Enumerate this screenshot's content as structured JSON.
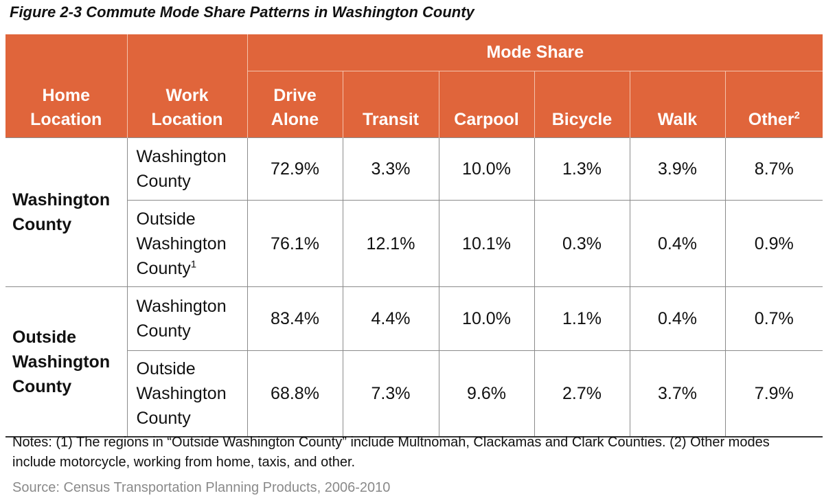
{
  "figure": {
    "title": "Figure 2-3  Commute Mode Share Patterns in Washington County"
  },
  "table": {
    "header": {
      "home_location": "Home Location",
      "work_location": "Work Location",
      "group": "Mode Share",
      "columns": [
        "Drive Alone",
        "Transit",
        "Carpool",
        "Bicycle",
        "Walk",
        "Other"
      ],
      "other_footnote": "2"
    },
    "groups": [
      {
        "home": "Washington County",
        "rows": [
          {
            "work": "Washington County",
            "footnote": "",
            "values": [
              "72.9%",
              "3.3%",
              "10.0%",
              "1.3%",
              "3.9%",
              "8.7%"
            ]
          },
          {
            "work": "Outside Washington County",
            "footnote": "1",
            "values": [
              "76.1%",
              "12.1%",
              "10.1%",
              "0.3%",
              "0.4%",
              "0.9%"
            ]
          }
        ]
      },
      {
        "home": "Outside Washington County",
        "rows": [
          {
            "work": "Washington County",
            "footnote": "",
            "values": [
              "83.4%",
              "4.4%",
              "10.0%",
              "1.1%",
              "0.4%",
              "0.7%"
            ]
          },
          {
            "work": "Outside Washington County",
            "footnote": "",
            "values": [
              "68.8%",
              "7.3%",
              "9.6%",
              "2.7%",
              "3.7%",
              "7.9%"
            ]
          }
        ]
      }
    ]
  },
  "notes": "Notes: (1) The regions in “Outside Washington County” include Multnomah, Clackamas and Clark Counties. (2) Other modes include motorcycle, working from home, taxis, and other.",
  "source": "Source: Census Transportation Planning Products, 2006-2010",
  "colors": {
    "header_bg": "#e0653b",
    "header_text": "#ffffff",
    "grid": "#8a8a8a",
    "source_text": "#8a8a8a"
  }
}
